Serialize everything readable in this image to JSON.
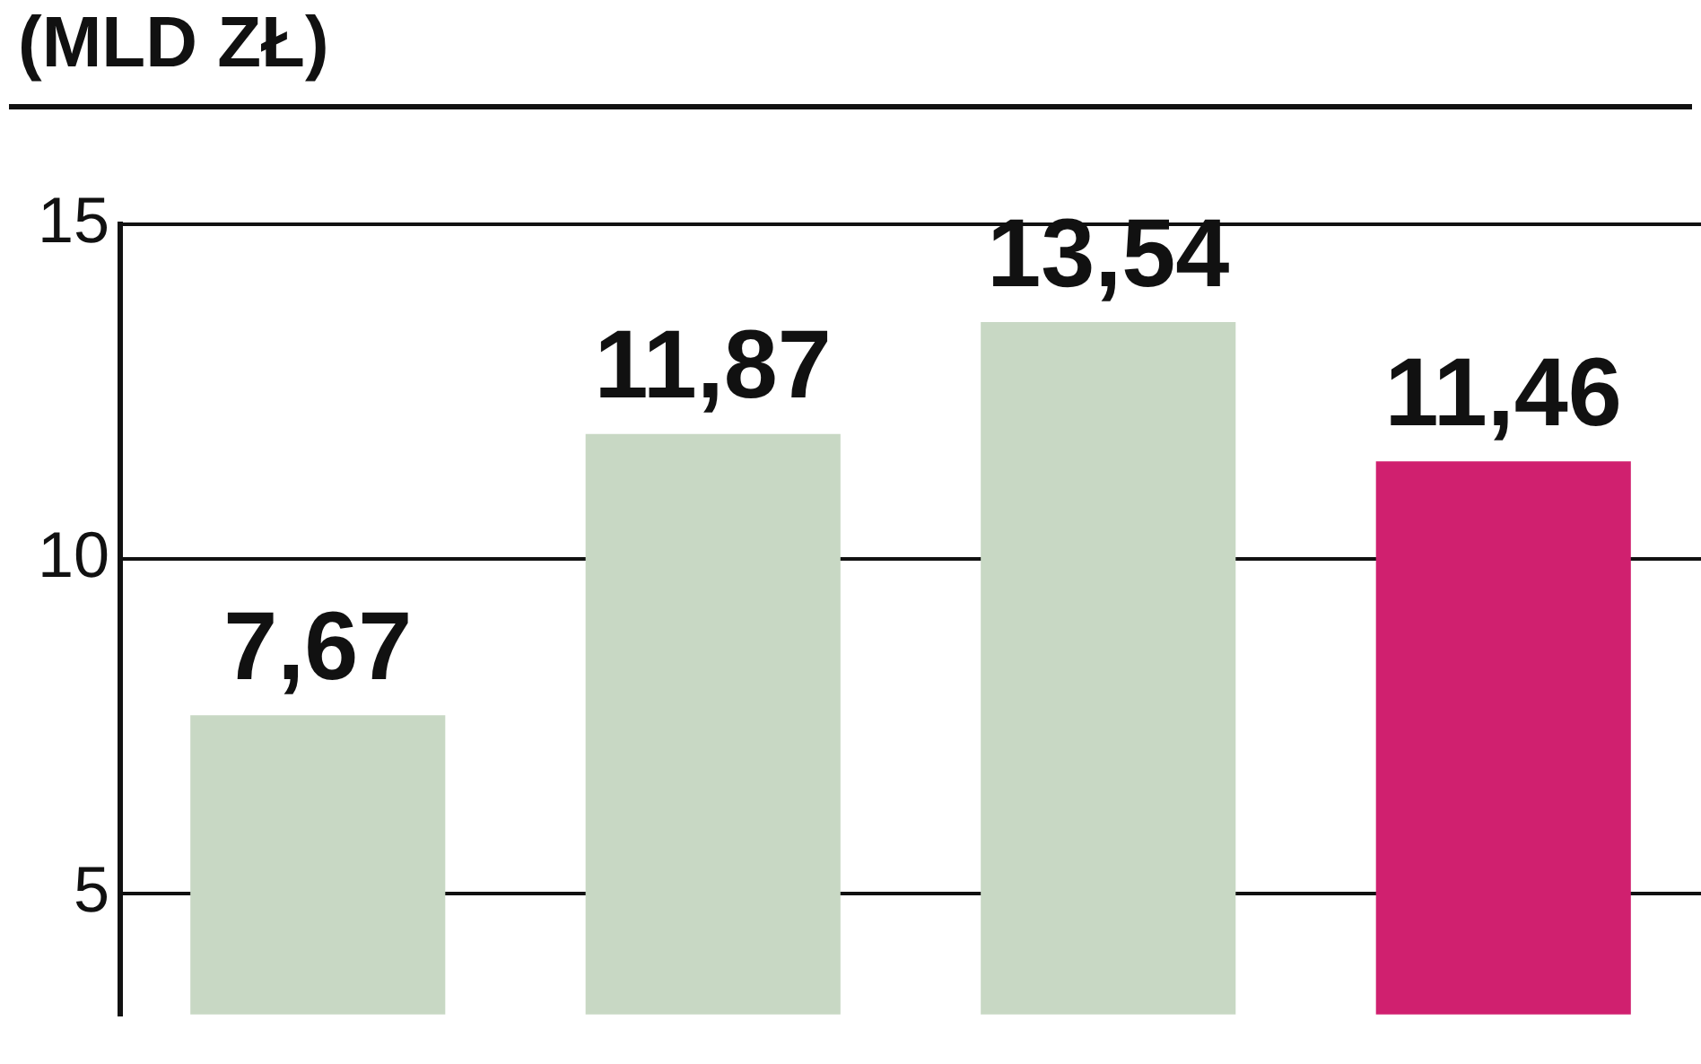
{
  "chart_data": {
    "type": "bar",
    "title": "(MLD ZŁ)",
    "categories": [
      null,
      null,
      null,
      null
    ],
    "values": [
      7.67,
      11.87,
      13.54,
      11.46
    ],
    "colors": [
      "#c8d8c4",
      "#c8d8c4",
      "#c8d8c4",
      "#d0206f"
    ],
    "value_labels": [
      "7,67",
      "11,87",
      "13,54",
      "11,46"
    ],
    "ylim": [
      3.2,
      15
    ],
    "yticks": [
      5,
      10,
      15
    ],
    "grid": "y"
  }
}
